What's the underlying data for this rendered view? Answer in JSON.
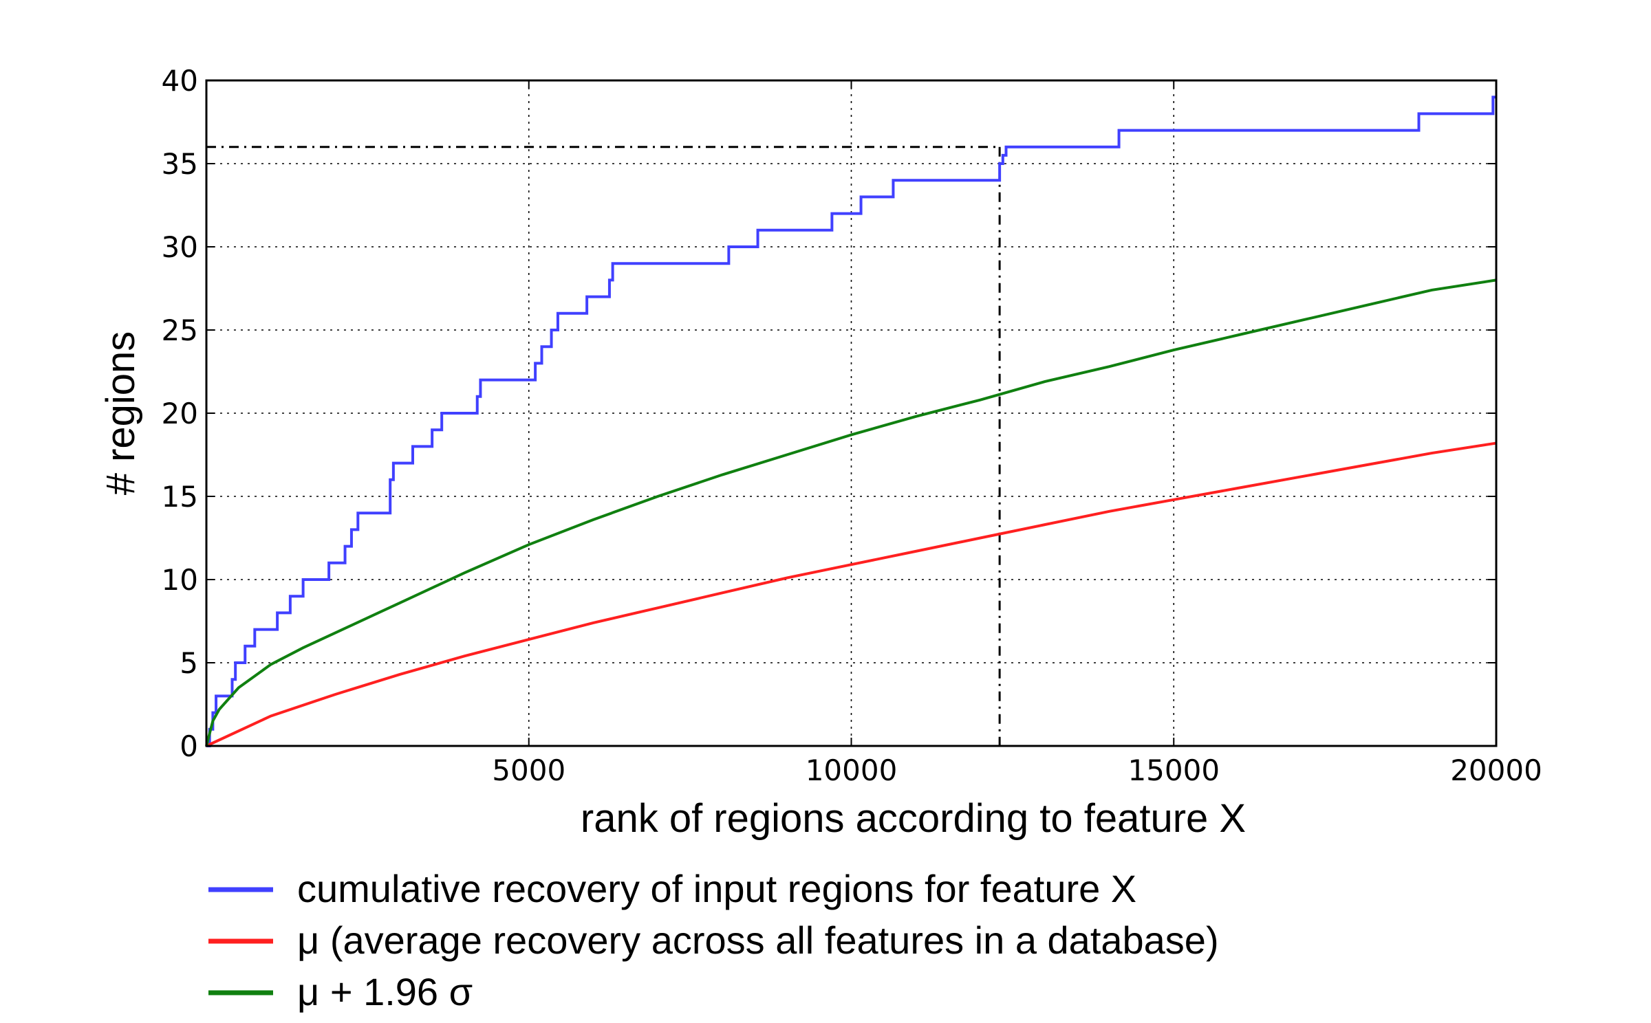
{
  "chart_data": {
    "type": "line",
    "xlabel": "rank of regions according to feature X",
    "ylabel": "# regions",
    "xlim": [
      0,
      20000
    ],
    "ylim": [
      0,
      40
    ],
    "xticks": [
      5000,
      10000,
      15000,
      20000
    ],
    "yticks": [
      0,
      5,
      10,
      15,
      20,
      25,
      30,
      35,
      40
    ],
    "grid": true,
    "legend_position": "below",
    "reference_lines": {
      "horizontal_y": 36,
      "vertical_x": 12300,
      "style": "dash-dot",
      "color": "#000000"
    },
    "series": [
      {
        "name": "cumulative recovery of input regions for feature X",
        "color": "#4040ff",
        "line": "step",
        "x": [
          0,
          50,
          100,
          150,
          400,
          450,
          600,
          750,
          800,
          1100,
          1300,
          1500,
          1900,
          2150,
          2250,
          2350,
          2450,
          2850,
          2900,
          3200,
          3500,
          3650,
          4200,
          4250,
          5100,
          5200,
          5350,
          5450,
          5900,
          6250,
          6300,
          8100,
          8550,
          9700,
          10150,
          10650,
          12300,
          12350,
          12400,
          14150,
          18800,
          19950
        ],
        "y": [
          0,
          1,
          2,
          3,
          4,
          5,
          6,
          7,
          7,
          8,
          9,
          10,
          11,
          12,
          13,
          14,
          14,
          16,
          17,
          18,
          19,
          20,
          21,
          22,
          23,
          24,
          25,
          26,
          27,
          28,
          29,
          30,
          31,
          32,
          33,
          34,
          35,
          35.5,
          36,
          37,
          38,
          39
        ]
      },
      {
        "name": "μ (average recovery across all features in a database)",
        "color": "#ff2020",
        "line": "smooth",
        "x": [
          0,
          1000,
          2000,
          3000,
          4000,
          5000,
          6000,
          7000,
          8000,
          9000,
          10000,
          11000,
          12000,
          13000,
          14000,
          15000,
          16000,
          17000,
          18000,
          19000,
          20000
        ],
        "y": [
          0,
          1.8,
          3.1,
          4.3,
          5.4,
          6.4,
          7.4,
          8.3,
          9.2,
          10.1,
          10.9,
          11.7,
          12.5,
          13.3,
          14.1,
          14.8,
          15.5,
          16.2,
          16.9,
          17.6,
          18.2
        ]
      },
      {
        "name": "μ + 1.96 σ",
        "color": "#108010",
        "line": "smooth",
        "x": [
          0,
          100,
          200,
          500,
          1000,
          1500,
          2000,
          3000,
          4000,
          5000,
          6000,
          7000,
          8000,
          9000,
          10000,
          11000,
          12000,
          13000,
          14000,
          15000,
          16000,
          17000,
          18000,
          19000,
          20000
        ],
        "y": [
          0,
          1.5,
          2.2,
          3.5,
          4.9,
          5.9,
          6.8,
          8.6,
          10.4,
          12.1,
          13.6,
          15.0,
          16.3,
          17.5,
          18.7,
          19.8,
          20.8,
          21.9,
          22.8,
          23.8,
          24.7,
          25.6,
          26.5,
          27.4,
          28.0
        ]
      }
    ]
  }
}
